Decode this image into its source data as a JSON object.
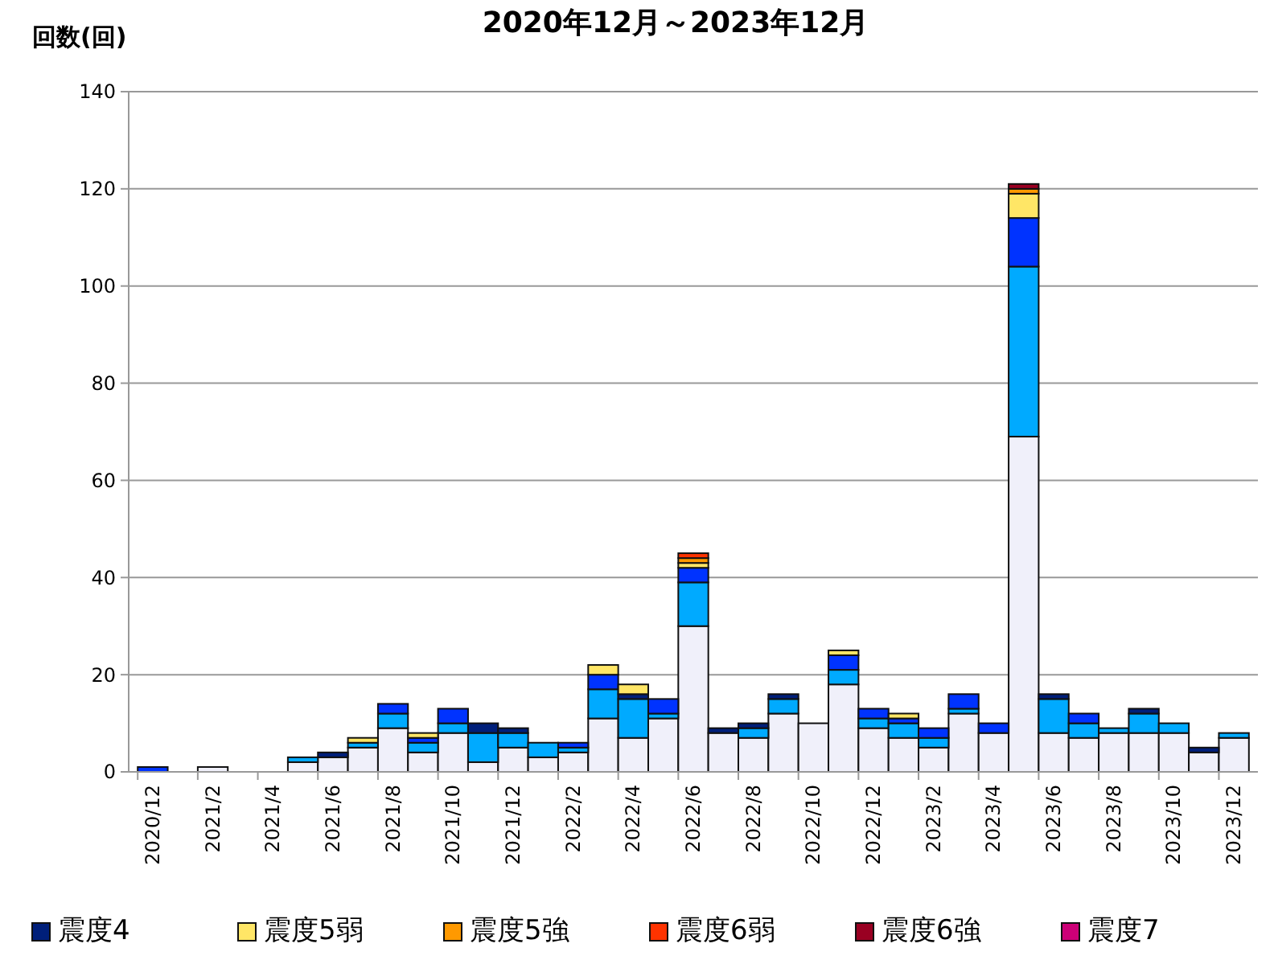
{
  "chart_data": {
    "type": "bar",
    "title": "2020年12月～2023年12月",
    "ylabel": "回数(回)",
    "stacked": true,
    "grid": "y",
    "legend": "bottom",
    "categories": [
      "2020/12",
      null,
      "2021/2",
      null,
      "2021/4",
      null,
      "2021/6",
      null,
      "2021/8",
      null,
      "2021/10",
      null,
      "2021/12",
      null,
      "2022/2",
      null,
      "2022/4",
      null,
      "2022/6",
      null,
      "2022/8",
      null,
      "2022/10",
      null,
      "2022/12",
      null,
      "2023/2",
      null,
      "2023/4",
      null,
      "2023/6",
      null,
      "2023/8",
      null,
      "2023/10",
      null,
      "2023/12"
    ],
    "ylim": [
      0,
      140
    ],
    "yticks": [
      0,
      20,
      40,
      60,
      80,
      100,
      120,
      140
    ],
    "series": [
      {
        "color": "#f0f0fa",
        "values": [
          0,
          0,
          1,
          0,
          0,
          2,
          3,
          5,
          9,
          4,
          8,
          2,
          5,
          3,
          4,
          11,
          7,
          11,
          30,
          8,
          7,
          12,
          10,
          18,
          9,
          7,
          5,
          12,
          8,
          69,
          8,
          7,
          8,
          8,
          8,
          4,
          7
        ]
      },
      {
        "color": "#00aaff",
        "values": [
          0,
          0,
          0,
          0,
          0,
          1,
          0,
          1,
          3,
          2,
          2,
          6,
          3,
          3,
          1,
          6,
          8,
          1,
          9,
          0,
          2,
          3,
          0,
          3,
          2,
          3,
          2,
          1,
          0,
          35,
          7,
          3,
          1,
          4,
          2,
          0,
          1
        ]
      },
      {
        "color": "#0033ff",
        "values": [
          1,
          0,
          0,
          0,
          0,
          0,
          0,
          0,
          2,
          1,
          3,
          0,
          0,
          0,
          1,
          3,
          0,
          3,
          3,
          0,
          0,
          0,
          0,
          3,
          2,
          1,
          2,
          3,
          2,
          10,
          0,
          2,
          0,
          0,
          0,
          0,
          0
        ]
      },
      {
        "name": "震度4",
        "color": "#001f7a",
        "values": [
          0,
          0,
          0,
          0,
          0,
          0,
          1,
          0,
          0,
          0,
          0,
          2,
          1,
          0,
          0,
          0,
          1,
          0,
          0,
          1,
          1,
          1,
          0,
          0,
          0,
          0,
          0,
          0,
          0,
          0,
          1,
          0,
          0,
          1,
          0,
          1,
          0
        ]
      },
      {
        "name": "震度5弱",
        "color": "#ffe666",
        "values": [
          0,
          0,
          0,
          0,
          0,
          0,
          0,
          1,
          0,
          1,
          0,
          0,
          0,
          0,
          0,
          2,
          2,
          0,
          1,
          0,
          0,
          0,
          0,
          1,
          0,
          1,
          0,
          0,
          0,
          5,
          0,
          0,
          0,
          0,
          0,
          0,
          0
        ]
      },
      {
        "name": "震度5強",
        "color": "#ff9900",
        "values": [
          0,
          0,
          0,
          0,
          0,
          0,
          0,
          0,
          0,
          0,
          0,
          0,
          0,
          0,
          0,
          0,
          0,
          0,
          1,
          0,
          0,
          0,
          0,
          0,
          0,
          0,
          0,
          0,
          0,
          1,
          0,
          0,
          0,
          0,
          0,
          0,
          0
        ]
      },
      {
        "name": "震度6弱",
        "color": "#ff3300",
        "values": [
          0,
          0,
          0,
          0,
          0,
          0,
          0,
          0,
          0,
          0,
          0,
          0,
          0,
          0,
          0,
          0,
          0,
          0,
          1,
          0,
          0,
          0,
          0,
          0,
          0,
          0,
          0,
          0,
          0,
          0,
          0,
          0,
          0,
          0,
          0,
          0,
          0
        ]
      },
      {
        "name": "震度6強",
        "color": "#990022",
        "values": [
          0,
          0,
          0,
          0,
          0,
          0,
          0,
          0,
          0,
          0,
          0,
          0,
          0,
          0,
          0,
          0,
          0,
          0,
          0,
          0,
          0,
          0,
          0,
          0,
          0,
          0,
          0,
          0,
          0,
          1,
          0,
          0,
          0,
          0,
          0,
          0,
          0
        ]
      },
      {
        "name": "震度7",
        "color": "#cc0077",
        "values": [
          0,
          0,
          0,
          0,
          0,
          0,
          0,
          0,
          0,
          0,
          0,
          0,
          0,
          0,
          0,
          0,
          0,
          0,
          0,
          0,
          0,
          0,
          0,
          0,
          0,
          0,
          0,
          0,
          0,
          0,
          0,
          0,
          0,
          0,
          0,
          0,
          0
        ]
      }
    ]
  }
}
